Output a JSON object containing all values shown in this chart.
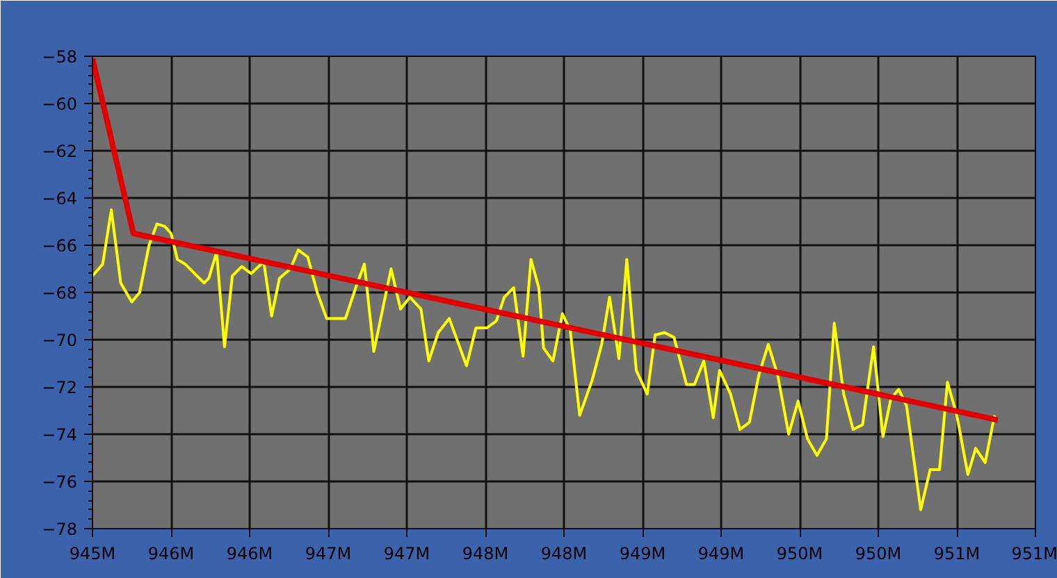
{
  "chart_data": {
    "type": "line",
    "xlim": [
      945,
      951
    ],
    "ylim": [
      -78,
      -58
    ],
    "xticks": [
      {
        "value": 945.0,
        "label": "945M"
      },
      {
        "value": 945.5,
        "label": "946M"
      },
      {
        "value": 946.0,
        "label": "946M"
      },
      {
        "value": 946.5,
        "label": "947M"
      },
      {
        "value": 947.0,
        "label": "947M"
      },
      {
        "value": 947.5,
        "label": "948M"
      },
      {
        "value": 948.0,
        "label": "948M"
      },
      {
        "value": 948.5,
        "label": "949M"
      },
      {
        "value": 949.0,
        "label": "949M"
      },
      {
        "value": 949.5,
        "label": "950M"
      },
      {
        "value": 950.0,
        "label": "950M"
      },
      {
        "value": 950.5,
        "label": "951M"
      },
      {
        "value": 951.0,
        "label": "951M"
      }
    ],
    "yticks": [
      -78,
      -76,
      -74,
      -72,
      -70,
      -68,
      -66,
      -64,
      -62,
      -60,
      -58
    ],
    "grid": true,
    "marker": "none",
    "line_style": "solid",
    "series": [
      {
        "color": "#ffff00",
        "x": [
          945.0,
          945.065,
          945.12,
          945.18,
          945.25,
          945.3,
          945.36,
          945.41,
          945.46,
          945.5,
          945.54,
          945.59,
          945.71,
          945.74,
          945.79,
          945.84,
          945.89,
          945.95,
          946.01,
          946.09,
          946.14,
          946.19,
          946.26,
          946.31,
          946.37,
          946.43,
          946.49,
          946.61,
          946.68,
          946.73,
          946.79,
          946.85,
          946.9,
          946.96,
          947.02,
          947.09,
          947.14,
          947.2,
          947.27,
          947.38,
          947.44,
          947.51,
          947.57,
          947.62,
          947.68,
          947.74,
          947.79,
          947.84,
          947.87,
          947.93,
          947.99,
          948.04,
          948.1,
          948.18,
          948.24,
          948.29,
          948.35,
          948.4,
          948.46,
          948.53,
          948.58,
          948.64,
          948.7,
          948.78,
          948.83,
          948.89,
          948.95,
          948.99,
          949.06,
          949.12,
          949.18,
          949.24,
          949.3,
          949.36,
          949.43,
          949.49,
          949.55,
          949.61,
          949.67,
          949.72,
          949.78,
          949.84,
          949.9,
          949.97,
          950.03,
          950.08,
          950.13,
          950.18,
          950.27,
          950.33,
          950.39,
          950.44,
          950.5,
          950.57,
          950.62,
          950.68,
          950.74
        ],
        "values": [
          -67.3,
          -66.8,
          -64.5,
          -67.6,
          -68.4,
          -68.0,
          -66.0,
          -65.1,
          -65.2,
          -65.5,
          -66.6,
          -66.8,
          -67.6,
          -67.4,
          -66.3,
          -70.3,
          -67.3,
          -66.9,
          -67.2,
          -66.7,
          -69.0,
          -67.4,
          -67.0,
          -66.2,
          -66.5,
          -68.0,
          -69.1,
          -69.1,
          -67.7,
          -66.8,
          -70.5,
          -68.6,
          -67.0,
          -68.7,
          -68.2,
          -68.7,
          -70.9,
          -69.7,
          -69.1,
          -71.1,
          -69.5,
          -69.5,
          -69.2,
          -68.2,
          -67.8,
          -70.7,
          -66.6,
          -67.8,
          -70.35,
          -70.9,
          -68.9,
          -69.6,
          -73.2,
          -71.7,
          -70.2,
          -68.2,
          -70.8,
          -66.6,
          -71.3,
          -72.3,
          -69.8,
          -69.7,
          -69.9,
          -71.9,
          -71.9,
          -70.9,
          -73.3,
          -71.3,
          -72.3,
          -73.8,
          -73.5,
          -71.5,
          -70.2,
          -71.5,
          -74.0,
          -72.6,
          -74.2,
          -74.9,
          -74.2,
          -69.3,
          -72.3,
          -73.8,
          -73.6,
          -70.3,
          -74.1,
          -72.5,
          -72.1,
          -72.8,
          -77.2,
          -75.5,
          -75.5,
          -71.8,
          -73.2,
          -75.7,
          -74.6,
          -75.2,
          -73.2
        ]
      },
      {
        "color": "#e00000",
        "x": [
          945.0,
          945.26,
          950.76
        ],
        "values": [
          -58.1,
          -65.5,
          -73.4
        ]
      }
    ]
  }
}
